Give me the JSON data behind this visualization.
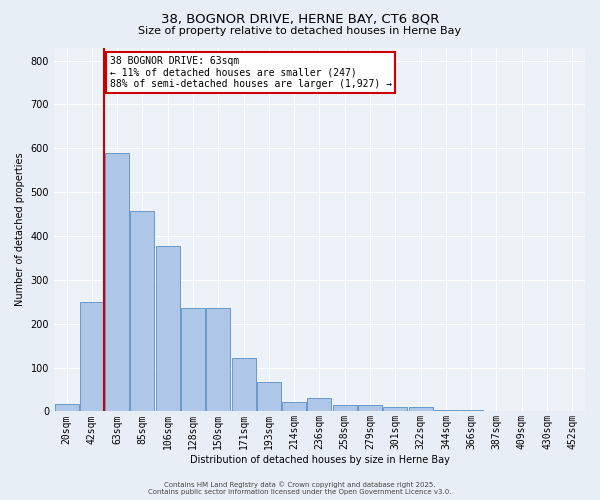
{
  "title1": "38, BOGNOR DRIVE, HERNE BAY, CT6 8QR",
  "title2": "Size of property relative to detached houses in Herne Bay",
  "xlabel": "Distribution of detached houses by size in Herne Bay",
  "ylabel": "Number of detached properties",
  "categories": [
    "20sqm",
    "42sqm",
    "63sqm",
    "85sqm",
    "106sqm",
    "128sqm",
    "150sqm",
    "171sqm",
    "193sqm",
    "214sqm",
    "236sqm",
    "258sqm",
    "279sqm",
    "301sqm",
    "322sqm",
    "344sqm",
    "366sqm",
    "387sqm",
    "409sqm",
    "430sqm",
    "452sqm"
  ],
  "values": [
    18,
    250,
    590,
    457,
    378,
    237,
    237,
    122,
    68,
    22,
    30,
    14,
    15,
    10,
    11,
    3,
    3,
    2,
    1,
    0,
    0
  ],
  "bar_color": "#aec6e8",
  "bar_edge_color": "#5a8fc2",
  "highlight_bar_index": 2,
  "highlight_color": "#cc0000",
  "ylim": [
    0,
    830
  ],
  "yticks": [
    0,
    100,
    200,
    300,
    400,
    500,
    600,
    700,
    800
  ],
  "annotation_text": "38 BOGNOR DRIVE: 63sqm\n← 11% of detached houses are smaller (247)\n88% of semi-detached houses are larger (1,927) →",
  "annotation_box_color": "#ffffff",
  "annotation_box_edge_color": "#cc0000",
  "footer1": "Contains HM Land Registry data © Crown copyright and database right 2025.",
  "footer2": "Contains public sector information licensed under the Open Government Licence v3.0.",
  "background_color": "#e8eef5",
  "plot_background_color": "#edf2f8",
  "title1_fontsize": 9.5,
  "title2_fontsize": 8,
  "axis_label_fontsize": 7,
  "tick_fontsize": 7,
  "annotation_fontsize": 7,
  "footer_fontsize": 5
}
